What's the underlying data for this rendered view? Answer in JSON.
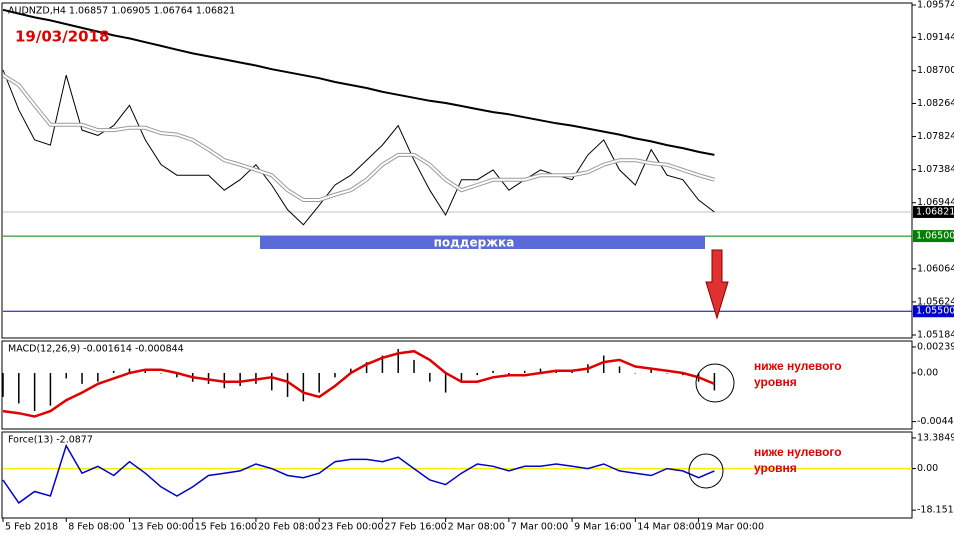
{
  "chart_data": [
    {
      "type": "line",
      "title": "AUDNZD,H4  1.06857 1.06905 1.06764 1.06821",
      "annotation": "19/03/2018",
      "support_label": "поддержка",
      "xlim": [
        0,
        230
      ],
      "x": [
        0,
        4,
        8,
        12,
        16,
        20,
        24,
        28,
        32,
        36,
        40,
        44,
        48,
        52,
        56,
        60,
        64,
        68,
        72,
        76,
        80,
        84,
        88,
        92,
        96,
        100,
        104,
        108,
        112,
        116,
        120,
        124,
        128,
        132,
        136,
        140,
        144,
        148,
        152,
        156,
        160,
        164,
        168,
        172,
        176,
        180
      ],
      "series": [
        {
          "type": "line",
          "color": "#000000",
          "values": [
            1.0871,
            1.0818,
            1.0778,
            1.0771,
            1.0864,
            1.0791,
            1.0784,
            1.0797,
            1.0824,
            1.0778,
            1.0745,
            1.0731,
            1.0731,
            1.0731,
            1.0711,
            1.0725,
            1.0745,
            1.0718,
            1.0685,
            1.0665,
            1.0691,
            1.0718,
            1.0731,
            1.0751,
            1.0771,
            1.0797,
            1.0751,
            1.0711,
            1.0678,
            1.0725,
            1.0725,
            1.0738,
            1.0711,
            1.0725,
            1.0738,
            1.0731,
            1.0725,
            1.0758,
            1.0778,
            1.0738,
            1.0718,
            1.0765,
            1.0731,
            1.0725,
            1.0698,
            1.0682
          ]
        },
        {
          "type": "line",
          "color": "#ffffff",
          "values": [
            1.0864,
            1.0851,
            1.0824,
            1.0798,
            1.0798,
            1.0798,
            1.0791,
            1.0791,
            1.0794,
            1.0794,
            1.0787,
            1.0785,
            1.0778,
            1.0765,
            1.0751,
            1.0745,
            1.0738,
            1.0731,
            1.0711,
            1.0698,
            1.0698,
            1.0705,
            1.0711,
            1.0725,
            1.0745,
            1.0758,
            1.0758,
            1.0745,
            1.0725,
            1.0711,
            1.0718,
            1.0725,
            1.0725,
            1.0725,
            1.0731,
            1.0731,
            1.0731,
            1.0735,
            1.0745,
            1.0751,
            1.0751,
            1.0747,
            1.0745,
            1.0738,
            1.0731,
            1.0725
          ]
        },
        {
          "type": "line",
          "color": "#000000",
          "width": 2,
          "values": [
            1.0951,
            1.0946,
            1.0941,
            1.0937,
            1.0932,
            1.0927,
            1.0922,
            1.0917,
            1.0913,
            1.0908,
            1.0903,
            1.0898,
            1.0893,
            1.0889,
            1.0885,
            1.0881,
            1.0877,
            1.0872,
            1.0868,
            1.0864,
            1.086,
            1.0855,
            1.0851,
            1.0847,
            1.0842,
            1.0838,
            1.0834,
            1.083,
            1.0827,
            1.0823,
            1.0819,
            1.0815,
            1.0812,
            1.0808,
            1.0804,
            1.08,
            1.0797,
            1.0793,
            1.0789,
            1.0785,
            1.078,
            1.0776,
            1.0771,
            1.0767,
            1.0762,
            1.0758
          ]
        }
      ],
      "ylim": [
        1.05144,
        1.09601
      ],
      "yticks": [
        1.05184,
        1.05624,
        1.06064,
        1.06944,
        1.07384,
        1.07824,
        1.08264,
        {
          "value": 1.087,
          "label": "1.08700"
        },
        1.09144,
        1.09574
      ],
      "levels": [
        {
          "value": 1.065,
          "label": "1.06500",
          "color": "#008000"
        },
        {
          "value": 1.055,
          "label": "1.05500",
          "color": "#0000cc"
        }
      ],
      "last_price": 1.06821
    },
    {
      "type": "bar",
      "title": "MACD(12,26,9) -0.001614 -0.000844",
      "annotation": [
        "ниже нулевого",
        "уровня"
      ],
      "xlim": [
        0,
        230
      ],
      "x": [
        0,
        4,
        8,
        12,
        16,
        20,
        24,
        28,
        32,
        36,
        40,
        44,
        48,
        52,
        56,
        60,
        64,
        68,
        72,
        76,
        80,
        84,
        88,
        92,
        96,
        100,
        104,
        108,
        112,
        116,
        120,
        124,
        128,
        132,
        136,
        140,
        144,
        148,
        152,
        156,
        160,
        164,
        168,
        172,
        176,
        180
      ],
      "series": [
        {
          "type": "bar",
          "color": "#000000",
          "values": [
            -0.0022,
            -0.0028,
            -0.0035,
            -0.003,
            -0.0005,
            -0.001,
            -0.0008,
            0.0002,
            0.0004,
            0.0002,
            0,
            -0.0004,
            -0.0008,
            -0.001,
            -0.0014,
            -0.0012,
            -0.001,
            -0.0016,
            -0.0022,
            -0.0026,
            -0.0018,
            -0.0004,
            0.0004,
            0.001,
            0.0016,
            0.0022,
            0.0012,
            -0.0008,
            -0.0018,
            -0.0008,
            -0.0002,
            0.0002,
            -0.0002,
            0.0002,
            0.0004,
            0.0002,
            0.0002,
            0.0008,
            0.0016,
            0.0006,
            0,
            0.0004,
            0,
            -0.0002,
            -0.0008,
            -0.0016
          ]
        },
        {
          "type": "line",
          "color": "#e00000",
          "width": 2.5,
          "values": [
            -0.0035,
            -0.0037,
            -0.004,
            -0.0035,
            -0.0025,
            -0.0018,
            -0.001,
            -0.0005,
            0,
            0.0003,
            0.0003,
            0,
            -0.0004,
            -0.0006,
            -0.0008,
            -0.0008,
            -0.0006,
            -0.0004,
            -0.0008,
            -0.0018,
            -0.0022,
            -0.0012,
            0,
            0.0008,
            0.0014,
            0.0018,
            0.002,
            0.0012,
            0,
            -0.0008,
            -0.0008,
            -0.0004,
            -0.0002,
            -0.0002,
            0,
            0.0002,
            0.0002,
            0.0004,
            0.001,
            0.0012,
            0.0006,
            0.0004,
            0.0002,
            0,
            -0.0004,
            -0.001
          ]
        }
      ],
      "ylim": [
        -0.00515,
        0.00294
      ],
      "yticks": [
        -0.004471,
        {
          "value": 0,
          "label": "0.00"
        },
        0.002392
      ]
    },
    {
      "type": "line",
      "title": "Force(13) -2.0877",
      "annotation": [
        "ниже нулевого",
        "уровня"
      ],
      "xlim": [
        0,
        230
      ],
      "x": [
        0,
        4,
        8,
        12,
        16,
        20,
        24,
        28,
        32,
        36,
        40,
        44,
        48,
        52,
        56,
        60,
        64,
        68,
        72,
        76,
        80,
        84,
        88,
        92,
        96,
        100,
        104,
        108,
        112,
        116,
        120,
        124,
        128,
        132,
        136,
        140,
        144,
        148,
        152,
        156,
        160,
        164,
        168,
        172,
        176,
        180
      ],
      "series": [
        {
          "type": "line",
          "color": "#0000cc",
          "width": 1.5,
          "values": [
            -5,
            -15,
            -10,
            -12,
            10,
            -2,
            1,
            -3,
            3,
            -2,
            -8,
            -12,
            -8,
            -3,
            -2,
            -1,
            2,
            0,
            -3,
            -4,
            -2,
            3,
            4,
            4,
            3,
            5,
            0,
            -5,
            -7,
            -2,
            2,
            1,
            -1,
            1,
            1,
            2,
            1,
            0,
            2,
            -1,
            -2,
            -3,
            0,
            -1,
            -4,
            -1
          ]
        }
      ],
      "ylim": [
        -21.6,
        16
      ],
      "yticks": [
        -18.1511,
        {
          "value": 0,
          "label": "0.00"
        },
        13.3849
      ],
      "levels": [
        {
          "value": 0,
          "color": "#f0f000"
        }
      ],
      "xticks": [
        {
          "value": 0,
          "label": "5 Feb 2018"
        },
        {
          "value": 16,
          "label": "8 Feb 08:00"
        },
        {
          "value": 32,
          "label": "13 Feb 00:00"
        },
        {
          "value": 48,
          "label": "15 Feb 16:00"
        },
        {
          "value": 64,
          "label": "20 Feb 08:00"
        },
        {
          "value": 80,
          "label": "23 Feb 00:00"
        },
        {
          "value": 96,
          "label": "27 Feb 16:00"
        },
        {
          "value": 112,
          "label": "2 Mar 08:00"
        },
        {
          "value": 128,
          "label": "7 Mar 00:00"
        },
        {
          "value": 144,
          "label": "9 Mar 16:00"
        },
        {
          "value": 160,
          "label": "14 Mar 08:00"
        },
        {
          "value": 176,
          "label": "19 Mar 00:00"
        }
      ]
    }
  ]
}
